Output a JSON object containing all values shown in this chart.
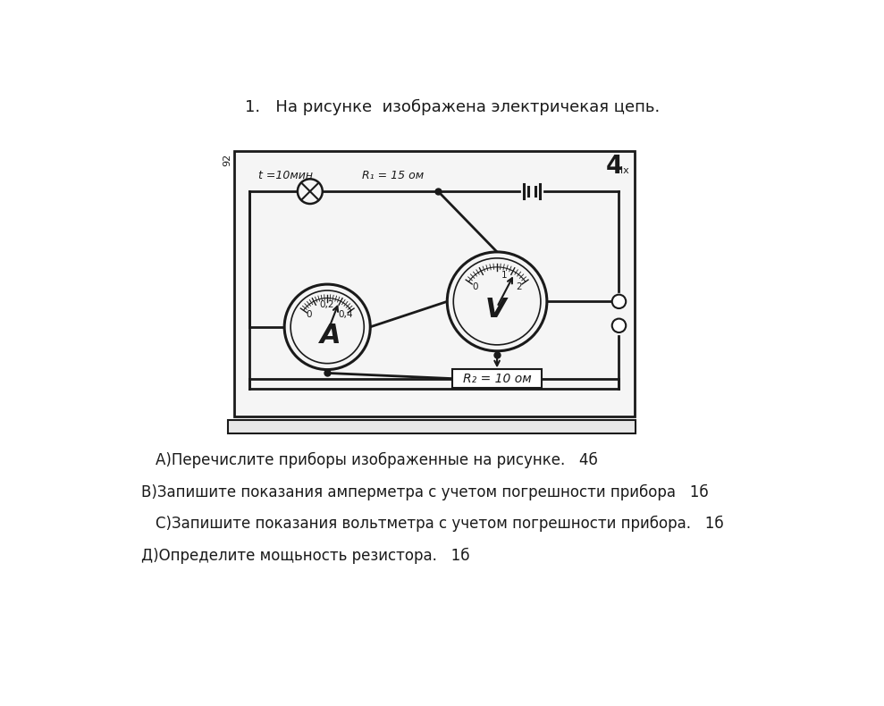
{
  "title_text": "1.   На рисунке  изображена электричекая цепь.",
  "label_number": "92",
  "t_label": "t =10мин",
  "R1_label": "R₁ = 15 ом",
  "R2_label": "R₂ = 10 ом",
  "A_label": "A",
  "V_label": "V",
  "amp_0": "0",
  "amp_02": "0,2",
  "amp_04": "0,4",
  "volt_0": "0",
  "volt_1": "1",
  "volt_2": "2",
  "label_4": "4",
  "label_ix": "ix",
  "question_A": "А)Перечислите приборы изображенные на рисунке.   4б",
  "question_B": "В)Запишите показания амперметра с учетом погрешности прибора   1б",
  "question_C": "С)Запишите показания вольтметра с учетом погрешности прибора.   1б",
  "question_D": "Д)Определите мощьность резистора.   1б",
  "bg_color": "#ffffff",
  "box_color": "#1a1a1a",
  "text_color": "#1a1a1a"
}
